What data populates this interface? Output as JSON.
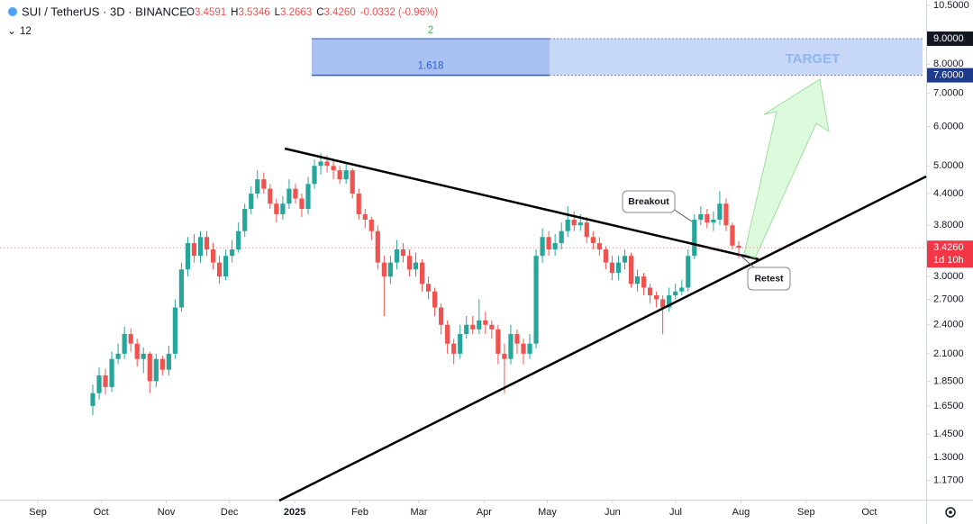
{
  "chart_data": {
    "type": "candlestick",
    "title": "SUI / TetherUS · 3D · BINANCE",
    "ohlc_header": [
      {
        "key": "O",
        "value": "3.4591"
      },
      {
        "key": "H",
        "value": "3.5346"
      },
      {
        "key": "L",
        "value": "3.2663"
      },
      {
        "key": "C",
        "value": "3.4260"
      }
    ],
    "change_text": "-0.0332 (-0.96%)",
    "indicator_count": 12,
    "up_color": "#26a69a",
    "down_color": "#ef5350",
    "log_scale": true,
    "grid": false,
    "open": [
      1.65,
      1.75,
      1.9,
      1.8,
      2.05,
      2.1,
      2.3,
      2.2,
      2.05,
      2.1,
      1.85,
      2.05,
      1.95,
      2.1,
      2.6,
      3.1,
      3.5,
      3.3,
      3.6,
      3.4,
      3.2,
      3.0,
      3.3,
      3.4,
      3.7,
      4.1,
      4.4,
      4.7,
      4.5,
      4.2,
      4.0,
      4.2,
      4.5,
      4.3,
      4.1,
      4.6,
      5.0,
      5.1,
      5.0,
      4.9,
      4.7,
      4.9,
      4.4,
      4.0,
      3.9,
      3.7,
      3.2,
      3.0,
      3.2,
      3.4,
      3.3,
      3.1,
      3.2,
      2.9,
      2.8,
      2.6,
      2.4,
      2.2,
      2.1,
      2.3,
      2.4,
      2.35,
      2.45,
      2.4,
      2.35,
      2.1,
      2.05,
      2.3,
      2.2,
      2.1,
      2.2,
      3.3,
      3.6,
      3.4,
      3.5,
      3.7,
      3.9,
      3.8,
      3.85,
      3.6,
      3.5,
      3.4,
      3.2,
      3.05,
      3.2,
      3.3,
      2.9,
      3.0,
      2.85,
      2.75,
      2.7,
      2.6,
      2.75,
      2.8,
      2.85,
      3.3,
      3.9,
      4.0,
      3.85,
      3.9,
      4.2,
      3.8,
      3.4591
    ],
    "high": [
      1.82,
      1.97,
      1.96,
      2.12,
      2.2,
      2.38,
      2.36,
      2.25,
      2.16,
      2.12,
      2.1,
      2.08,
      2.18,
      2.7,
      3.2,
      3.6,
      3.65,
      3.7,
      3.7,
      3.5,
      3.3,
      3.4,
      3.55,
      3.85,
      4.2,
      4.55,
      4.9,
      4.85,
      4.6,
      4.3,
      4.35,
      4.7,
      4.6,
      4.4,
      4.75,
      5.15,
      5.3,
      5.25,
      5.15,
      5.0,
      5.05,
      4.95,
      4.5,
      4.1,
      3.95,
      3.8,
      3.3,
      3.3,
      3.55,
      3.5,
      3.4,
      3.35,
      3.25,
      3.0,
      2.85,
      2.65,
      2.45,
      2.25,
      2.4,
      2.5,
      2.5,
      2.7,
      2.55,
      2.45,
      2.4,
      2.2,
      2.4,
      2.35,
      2.25,
      2.3,
      3.4,
      3.75,
      3.7,
      3.65,
      3.85,
      4.15,
      4.05,
      4.0,
      3.95,
      3.7,
      3.6,
      3.45,
      3.3,
      3.3,
      3.4,
      3.35,
      3.1,
      3.05,
      2.9,
      2.8,
      2.75,
      2.85,
      2.9,
      2.95,
      3.4,
      4.0,
      4.15,
      4.1,
      4.05,
      4.45,
      4.3,
      3.85,
      3.5346
    ],
    "low": [
      1.58,
      1.7,
      1.74,
      1.76,
      2.0,
      2.05,
      2.12,
      1.98,
      1.92,
      1.75,
      1.8,
      1.9,
      1.9,
      2.05,
      2.55,
      3.0,
      3.2,
      3.2,
      3.3,
      3.1,
      2.9,
      2.95,
      3.2,
      3.35,
      3.6,
      4.0,
      4.3,
      4.4,
      4.1,
      3.85,
      3.9,
      4.1,
      4.2,
      3.95,
      4.0,
      4.5,
      4.8,
      4.85,
      4.7,
      4.6,
      4.6,
      4.3,
      3.9,
      3.75,
      3.55,
      3.1,
      2.5,
      2.9,
      3.1,
      3.2,
      3.0,
      3.0,
      2.8,
      2.7,
      2.5,
      2.3,
      2.1,
      2.0,
      2.05,
      2.25,
      2.3,
      2.3,
      2.3,
      2.25,
      2.0,
      1.75,
      2.0,
      2.1,
      2.0,
      2.05,
      2.15,
      3.2,
      3.3,
      3.3,
      3.4,
      3.6,
      3.7,
      3.7,
      3.5,
      3.4,
      3.3,
      3.1,
      2.95,
      2.95,
      3.1,
      2.85,
      2.8,
      2.75,
      2.65,
      2.6,
      2.3,
      2.55,
      2.7,
      2.75,
      2.8,
      3.25,
      3.8,
      3.75,
      3.7,
      3.8,
      3.7,
      3.4,
      3.2663
    ],
    "close": [
      1.75,
      1.9,
      1.8,
      2.05,
      2.1,
      2.3,
      2.2,
      2.05,
      2.1,
      1.85,
      2.05,
      1.95,
      2.1,
      2.6,
      3.1,
      3.5,
      3.3,
      3.6,
      3.4,
      3.2,
      3.0,
      3.3,
      3.4,
      3.7,
      4.1,
      4.4,
      4.7,
      4.5,
      4.2,
      4.0,
      4.2,
      4.5,
      4.3,
      4.1,
      4.6,
      5.0,
      5.1,
      5.0,
      4.9,
      4.7,
      4.9,
      4.4,
      4.0,
      3.9,
      3.7,
      3.2,
      3.0,
      3.2,
      3.4,
      3.3,
      3.1,
      3.2,
      2.9,
      2.8,
      2.6,
      2.4,
      2.2,
      2.1,
      2.3,
      2.4,
      2.35,
      2.45,
      2.4,
      2.35,
      2.1,
      2.05,
      2.3,
      2.2,
      2.1,
      2.2,
      3.3,
      3.6,
      3.4,
      3.5,
      3.7,
      3.9,
      3.8,
      3.85,
      3.6,
      3.5,
      3.4,
      3.2,
      3.05,
      3.2,
      3.3,
      2.9,
      3.0,
      2.85,
      2.75,
      2.7,
      2.6,
      2.75,
      2.8,
      2.85,
      3.3,
      3.9,
      4.0,
      3.85,
      3.9,
      4.2,
      3.8,
      3.46,
      3.426
    ],
    "ylim": [
      1.07,
      10.76
    ],
    "yticks": [
      {
        "value": 10.5,
        "label": "10.5000"
      },
      {
        "value": 8,
        "label": "8.0000"
      },
      {
        "value": 7,
        "label": "7.0000"
      },
      {
        "value": 6,
        "label": "6.0000"
      },
      {
        "value": 5,
        "label": "5.0000"
      },
      {
        "value": 4.4,
        "label": "4.4000"
      },
      {
        "value": 3.8,
        "label": "3.8000"
      },
      {
        "value": 3,
        "label": "3.0000"
      },
      {
        "value": 2.7,
        "label": "2.7000"
      },
      {
        "value": 2.4,
        "label": "2.4000"
      },
      {
        "value": 2.1,
        "label": "2.1000"
      },
      {
        "value": 1.85,
        "label": "1.8500"
      },
      {
        "value": 1.65,
        "label": "1.6500"
      },
      {
        "value": 1.45,
        "label": "1.4500"
      },
      {
        "value": 1.3,
        "label": "1.3000"
      },
      {
        "value": 1.17,
        "label": "1.1700"
      }
    ],
    "price_tags": [
      {
        "value": 9,
        "label": "9.0000",
        "color": "#131722"
      },
      {
        "value": 7.6,
        "label": "7.6000",
        "color": "#1e3a8a"
      }
    ],
    "last_price": {
      "value": 3.426,
      "label": "3.4260",
      "countdown": "1d 10h",
      "color": "#f23645"
    },
    "xlim": [
      "2024-08-14",
      "2025-10-28"
    ],
    "xticks": [
      {
        "value": "2024-09-01",
        "label": "Sep"
      },
      {
        "value": "2024-10-01",
        "label": "Oct"
      },
      {
        "value": "2024-11-01",
        "label": "Nov"
      },
      {
        "value": "2024-12-01",
        "label": "Dec"
      },
      {
        "value": "2025-01-01",
        "label": "2025"
      },
      {
        "value": "2025-02-01",
        "label": "Feb"
      },
      {
        "value": "2025-03-01",
        "label": "Mar"
      },
      {
        "value": "2025-04-01",
        "label": "Apr"
      },
      {
        "value": "2025-05-01",
        "label": "May"
      },
      {
        "value": "2025-06-01",
        "label": "Jun"
      },
      {
        "value": "2025-07-01",
        "label": "Jul"
      },
      {
        "value": "2025-08-01",
        "label": "Aug"
      },
      {
        "value": "2025-09-01",
        "label": "Sep"
      },
      {
        "value": "2025-10-01",
        "label": "Oct"
      }
    ],
    "fib_levels": [
      {
        "value": 9,
        "label": "2"
      },
      {
        "value": 7.6,
        "label": "1.618"
      }
    ],
    "annotations": {
      "target": "TARGET",
      "breakout": "Breakout",
      "retest": "Retest"
    }
  }
}
